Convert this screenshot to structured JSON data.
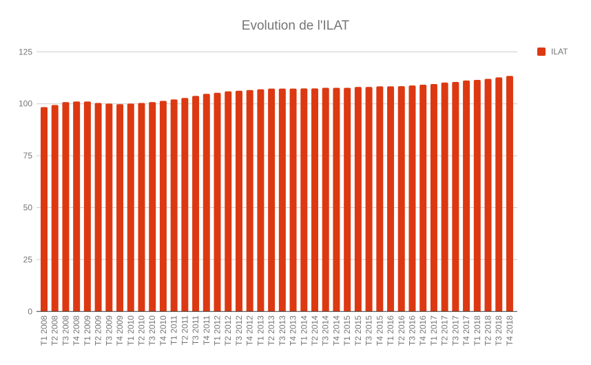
{
  "chart_data": {
    "type": "bar",
    "title": "Evolution de l'ILAT",
    "xlabel": "",
    "ylabel": "",
    "ylim": [
      0,
      125
    ],
    "yticks": [
      0,
      25,
      50,
      75,
      100,
      125
    ],
    "grid": true,
    "legend_position": "right",
    "categories": [
      "T1 2008",
      "T2 2008",
      "T3 2008",
      "T4 2008",
      "T1 2009",
      "T2 2009",
      "T3 2009",
      "T4 2009",
      "T1 2010",
      "T2 2010",
      "T3 2010",
      "T4 2010",
      "T1 2011",
      "T2 2011",
      "T3 2011",
      "T4 2011",
      "T1 2012",
      "T2 2012",
      "T3 2012",
      "T4 2012",
      "T1 2013",
      "T2 2013",
      "T3 2013",
      "T4 2013",
      "T1 2014",
      "T2 2014",
      "T3 2014",
      "T4 2014",
      "T1 2015",
      "T2 2015",
      "T3 2015",
      "T4 2015",
      "T1 2016",
      "T2 2016",
      "T3 2016",
      "T4 2016",
      "T1 2017",
      "T2 2017",
      "T3 2017",
      "T4 2017",
      "T1 2018",
      "T2 2018",
      "T3 2018",
      "T4 2018"
    ],
    "series": [
      {
        "name": "ILAT",
        "color": "#dc3912",
        "values": [
          98.4,
          99.4,
          100.8,
          101.1,
          101.1,
          100.4,
          100.1,
          99.8,
          100.1,
          100.4,
          100.8,
          101.4,
          102.1,
          102.8,
          103.8,
          104.8,
          105.3,
          106.0,
          106.3,
          106.6,
          107.0,
          107.3,
          107.3,
          107.3,
          107.4,
          107.4,
          107.7,
          107.7,
          107.7,
          108.1,
          108.1,
          108.4,
          108.4,
          108.5,
          108.8,
          109.2,
          109.5,
          110.2,
          110.5,
          111.2,
          111.5,
          112.0,
          112.7,
          113.4
        ]
      }
    ]
  },
  "colors": {
    "bar": "#dc3912",
    "grid": "#cccccc",
    "baseline": "#333333",
    "text": "#757575"
  }
}
